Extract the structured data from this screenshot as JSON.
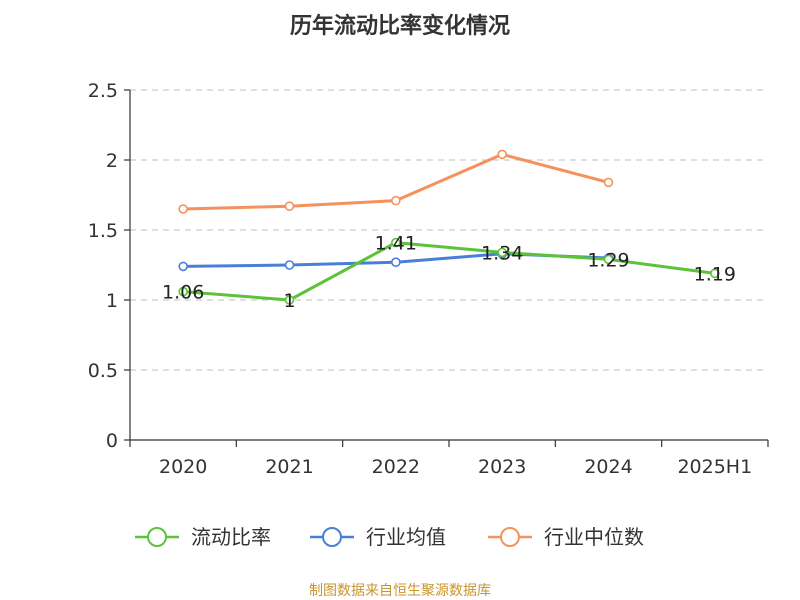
{
  "chart_data": {
    "type": "line",
    "title": "历年流动比率变化情况",
    "categories": [
      "2020",
      "2021",
      "2022",
      "2023",
      "2024",
      "2025H1"
    ],
    "y_ticks": [
      "0",
      "0.5",
      "1",
      "1.5",
      "2",
      "2.5"
    ],
    "ylim": [
      0,
      2.5
    ],
    "grid": true,
    "legend_position": "bottom",
    "series": [
      {
        "name": "流动比率",
        "color": "#5cc23a",
        "values": [
          1.06,
          1.0,
          1.41,
          1.34,
          1.29,
          1.19
        ],
        "labels": [
          "1.06",
          "1",
          "1.41",
          "1.34",
          "1.29",
          "1.19"
        ]
      },
      {
        "name": "行业均值",
        "color": "#4a7fd9",
        "values": [
          1.24,
          1.25,
          1.27,
          1.33,
          1.3,
          null
        ]
      },
      {
        "name": "行业中位数",
        "color": "#f5915a",
        "values": [
          1.65,
          1.67,
          1.71,
          2.04,
          1.84,
          null
        ]
      }
    ]
  },
  "source": {
    "text": "制图数据来自恒生聚源数据库",
    "color": "#c8952e"
  }
}
